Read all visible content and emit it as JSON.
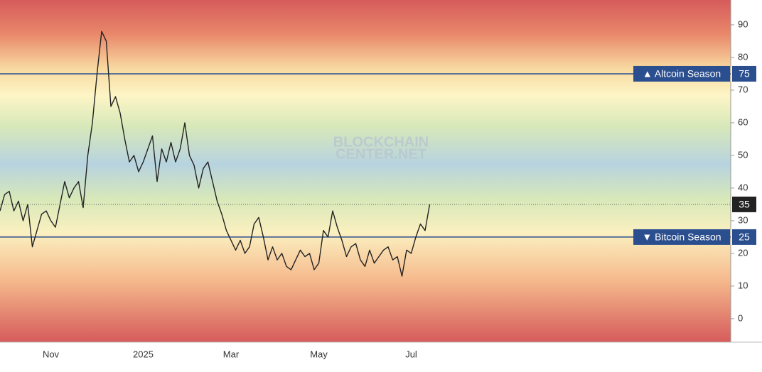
{
  "chart_data": {
    "type": "line",
    "watermark": [
      "BLOCKCHAIN",
      "CENTER.NET"
    ],
    "categories": [
      null,
      null,
      null,
      null,
      null,
      null,
      null,
      null,
      null,
      null,
      null,
      "Nov",
      null,
      null,
      null,
      null,
      null,
      null,
      null,
      null,
      null,
      null,
      null,
      null,
      null,
      null,
      null,
      null,
      null,
      null,
      null,
      "2025",
      null,
      null,
      null,
      null,
      null,
      null,
      null,
      null,
      null,
      null,
      null,
      null,
      null,
      null,
      null,
      null,
      null,
      null,
      "Mar",
      null,
      null,
      null,
      null,
      null,
      null,
      null,
      null,
      null,
      null,
      null,
      null,
      null,
      null,
      null,
      null,
      null,
      null,
      "May",
      null,
      null,
      null,
      null,
      null,
      null,
      null,
      null,
      null,
      null,
      null,
      null,
      null,
      null,
      null,
      null,
      null,
      null,
      null,
      "Jul",
      null,
      null,
      null,
      null
    ],
    "values": [
      33,
      38,
      39,
      33,
      36,
      30,
      35,
      22,
      27,
      32,
      33,
      30,
      28,
      35,
      42,
      37,
      40,
      42,
      34,
      50,
      60,
      75,
      88,
      85,
      65,
      68,
      63,
      55,
      48,
      50,
      45,
      48,
      52,
      56,
      42,
      52,
      48,
      54,
      48,
      52,
      60,
      50,
      47,
      40,
      46,
      48,
      42,
      36,
      32,
      27,
      24,
      21,
      24,
      20,
      22,
      29,
      31,
      25,
      18,
      22,
      18,
      20,
      16,
      15,
      18,
      21,
      19,
      20,
      15,
      17,
      27,
      25,
      33,
      28,
      24,
      19,
      22,
      23,
      18,
      16,
      21,
      17,
      19,
      21,
      22,
      18,
      19,
      13,
      21,
      20,
      25,
      29,
      27,
      35
    ],
    "color": "#222222",
    "thresholds": [
      {
        "label": "▲ Altcoin Season",
        "value": 75
      },
      {
        "label": "▼ Bitcoin Season",
        "value": 25
      }
    ],
    "threshold_color": "#2b4e8e",
    "ylim": [
      -7.2,
      97.6
    ],
    "yticks": [
      0,
      10,
      20,
      30,
      40,
      50,
      60,
      70,
      80,
      90
    ],
    "grid": false
  }
}
